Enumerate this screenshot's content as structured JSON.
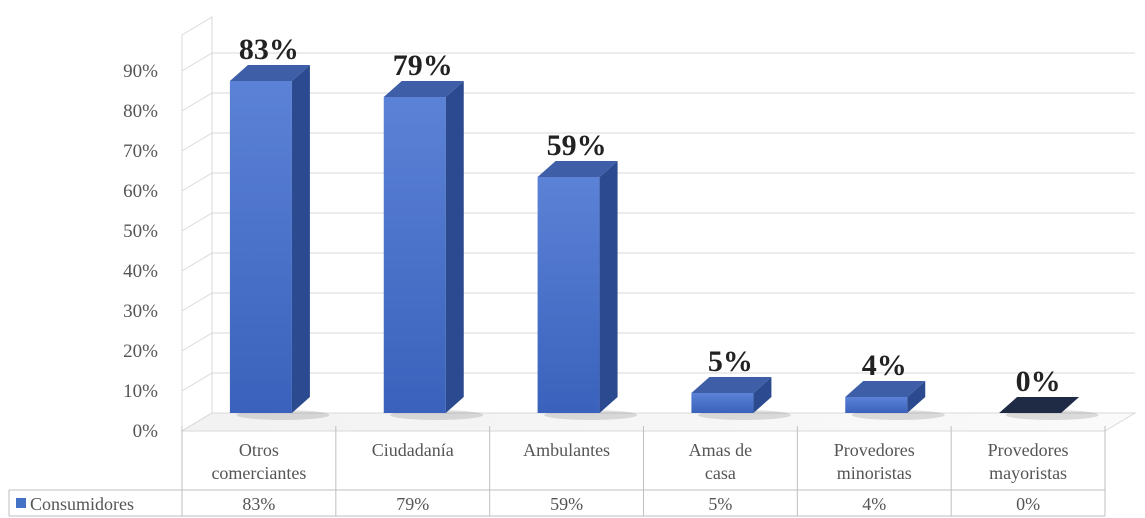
{
  "chart_data": {
    "type": "bar",
    "categories": [
      [
        "Otros",
        "comerciantes"
      ],
      [
        "Ciudadanía"
      ],
      [
        "Ambulantes"
      ],
      [
        "Amas de",
        "casa"
      ],
      [
        "Provedores",
        "minoristas"
      ],
      [
        "Provedores",
        "mayoristas"
      ]
    ],
    "series": [
      {
        "name": "Consumidores",
        "values": [
          83,
          79,
          59,
          5,
          4,
          0
        ],
        "color": "#4472C4"
      }
    ],
    "data_labels": [
      "83%",
      "79%",
      "59%",
      "5%",
      "4%",
      "0%"
    ],
    "table_values": [
      "83%",
      "79%",
      "59%",
      "5%",
      "4%",
      "0%"
    ],
    "y_ticks": [
      "0%",
      "10%",
      "20%",
      "30%",
      "40%",
      "50%",
      "60%",
      "70%",
      "80%",
      "90%"
    ],
    "ylim": [
      0,
      90
    ],
    "grid": true,
    "data_table": true,
    "style": "3d-column",
    "title": "",
    "xlabel": "",
    "ylabel": ""
  }
}
